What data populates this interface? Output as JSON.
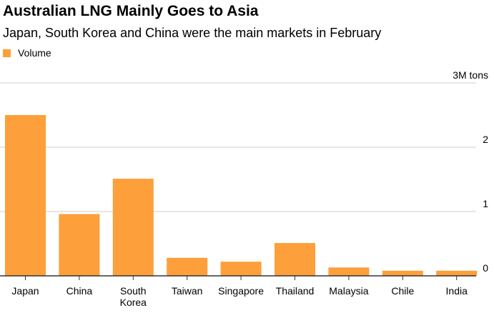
{
  "title": "Australian LNG Mainly Goes to Asia",
  "subtitle": "Japan, South Korea and China were the main markets in February",
  "chart_data": {
    "type": "bar",
    "title": "Australian LNG Mainly Goes to Asia",
    "subtitle": "Japan, South Korea and China were the main markets in February",
    "categories": [
      "Japan",
      "China",
      "South Korea",
      "Taiwan",
      "Singapore",
      "Thailand",
      "Malaysia",
      "Chile",
      "India"
    ],
    "series": [
      {
        "name": "Volume",
        "values": [
          2.5,
          0.96,
          1.51,
          0.28,
          0.22,
          0.51,
          0.13,
          0.08,
          0.08
        ],
        "color": "#fd9f3a"
      }
    ],
    "yunit": "3M tons",
    "yticks": [
      {
        "value": 0,
        "label": "0"
      },
      {
        "value": 1,
        "label": "1"
      },
      {
        "value": 2,
        "label": "2"
      },
      {
        "value": 3,
        "label": "3M tons"
      }
    ],
    "ylim": [
      0,
      3
    ],
    "grid": true,
    "legend": "top-left",
    "colors": {
      "bar": "#fd9f3a",
      "grid": "#cccccc",
      "axis": "#333333"
    }
  }
}
